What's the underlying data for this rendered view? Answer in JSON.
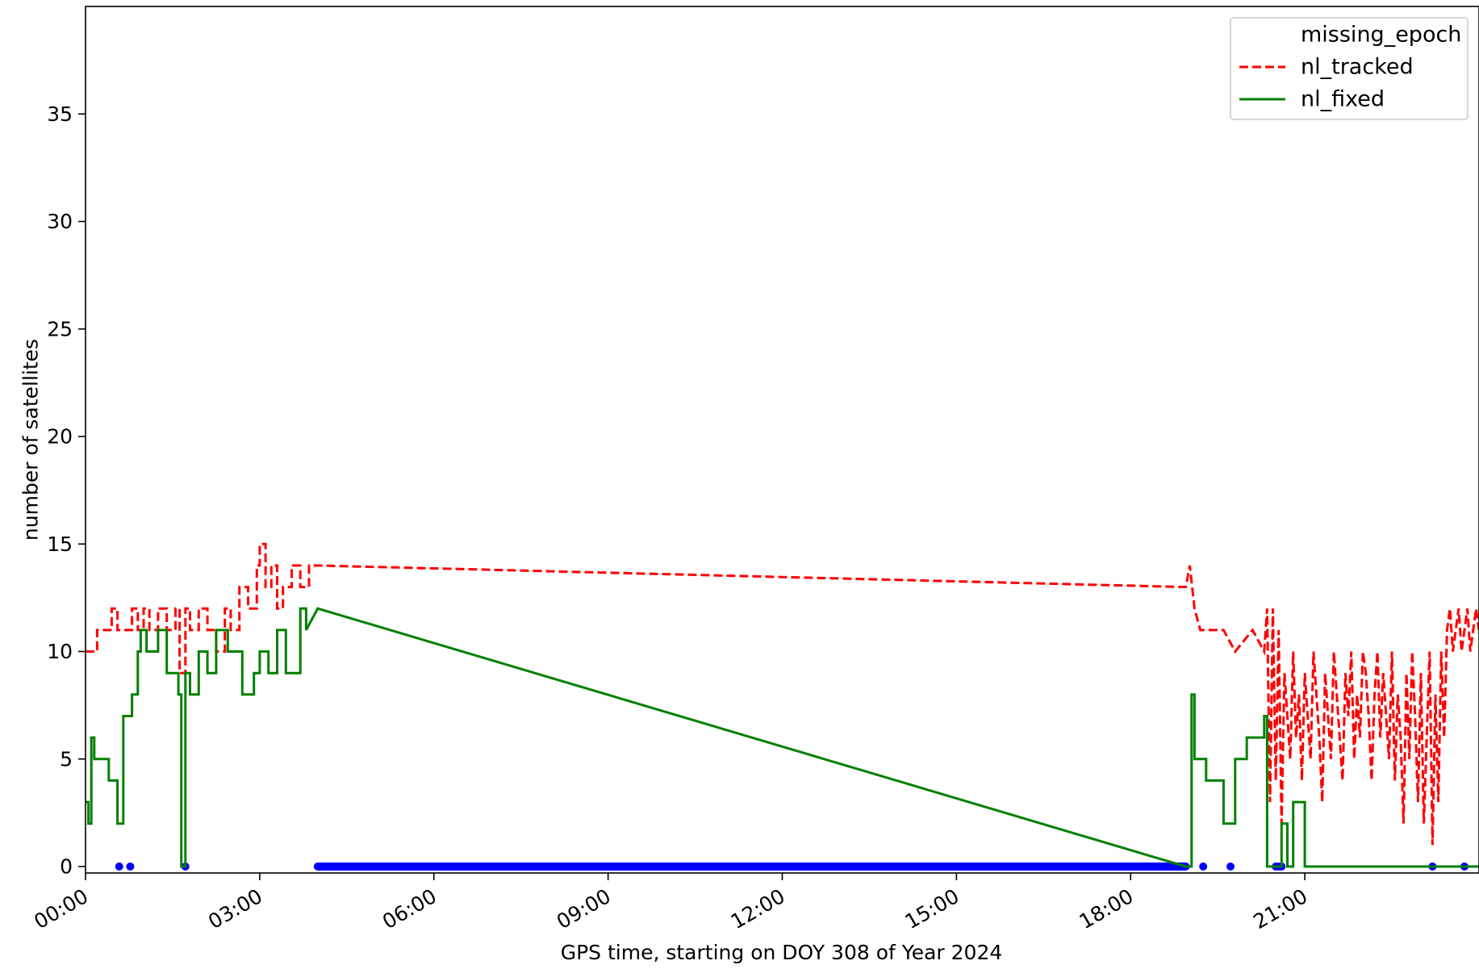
{
  "chart_data": {
    "type": "line",
    "xlabel": "GPS time, starting on DOY 308 of Year 2024",
    "ylabel": "number of satellites",
    "xlim": [
      0,
      24
    ],
    "ylim": [
      -0.3,
      40
    ],
    "grid": false,
    "legend_position": "top-right",
    "x_ticks": [
      {
        "value": 0,
        "label": "00:00"
      },
      {
        "value": 3,
        "label": "03:00"
      },
      {
        "value": 6,
        "label": "06:00"
      },
      {
        "value": 9,
        "label": "09:00"
      },
      {
        "value": 12,
        "label": "12:00"
      },
      {
        "value": 15,
        "label": "15:00"
      },
      {
        "value": 18,
        "label": "18:00"
      },
      {
        "value": 21,
        "label": "21:00"
      }
    ],
    "y_ticks": [
      {
        "value": 0,
        "label": "0"
      },
      {
        "value": 5,
        "label": "5"
      },
      {
        "value": 10,
        "label": "10"
      },
      {
        "value": 15,
        "label": "15"
      },
      {
        "value": 20,
        "label": "20"
      },
      {
        "value": 25,
        "label": "25"
      },
      {
        "value": 30,
        "label": "30"
      },
      {
        "value": 35,
        "label": "35"
      }
    ],
    "series": [
      {
        "name": "missing_epoch",
        "kind": "scatter",
        "color": "#0000ff",
        "points": [
          [
            0.58,
            0
          ],
          [
            0.77,
            0
          ],
          [
            1.72,
            0
          ],
          [
            19.25,
            0
          ],
          [
            19.72,
            0
          ],
          [
            20.5,
            0
          ],
          [
            20.55,
            0
          ],
          [
            20.6,
            0
          ],
          [
            23.2,
            0
          ],
          [
            23.75,
            0
          ]
        ],
        "bands": [
          [
            4.0,
            18.95,
            0
          ]
        ]
      },
      {
        "name": "nl_tracked",
        "kind": "line",
        "style": "dashed",
        "color": "#ff0000",
        "x": [
          0,
          0.2,
          0.2,
          0.45,
          0.45,
          0.55,
          0.55,
          0.8,
          0.8,
          0.9,
          0.9,
          1.0,
          1.0,
          1.1,
          1.1,
          1.25,
          1.25,
          1.4,
          1.4,
          1.55,
          1.55,
          1.62,
          1.62,
          1.72,
          1.72,
          1.8,
          1.8,
          1.95,
          1.95,
          2.1,
          2.1,
          2.25,
          2.25,
          2.4,
          2.4,
          2.5,
          2.5,
          2.65,
          2.65,
          2.8,
          2.8,
          2.95,
          2.95,
          3.0,
          3.0,
          3.1,
          3.1,
          3.2,
          3.2,
          3.3,
          3.3,
          3.4,
          3.4,
          3.55,
          3.55,
          3.7,
          3.7,
          3.85,
          3.85,
          4.0,
          4.0,
          18.95,
          18.95,
          19.02,
          19.02,
          19.1,
          19.1,
          19.2,
          19.2,
          19.6,
          19.6,
          19.8,
          19.8,
          20.1,
          20.1,
          20.3,
          20.3,
          20.35,
          20.4,
          20.45,
          20.5,
          20.55,
          20.6,
          20.65,
          20.7,
          20.75,
          20.8,
          20.85,
          20.9,
          20.95,
          21.0,
          21.05,
          21.1,
          21.15,
          21.2,
          21.25,
          21.3,
          21.35,
          21.4,
          21.45,
          21.5,
          21.55,
          21.6,
          21.65,
          21.7,
          21.75,
          21.8,
          21.85,
          21.9,
          21.95,
          22.0,
          22.05,
          22.1,
          22.15,
          22.2,
          22.25,
          22.3,
          22.35,
          22.4,
          22.45,
          22.5,
          22.55,
          22.6,
          22.65,
          22.7,
          22.75,
          22.8,
          22.85,
          22.9,
          22.95,
          23.0,
          23.05,
          23.1,
          23.15,
          23.2,
          23.25,
          23.3,
          23.35,
          23.4,
          23.45,
          23.5,
          23.55,
          23.6,
          23.65,
          23.7,
          23.75,
          23.8,
          23.85,
          23.9,
          23.95,
          24.0
        ],
        "y": [
          10,
          10,
          11,
          11,
          12,
          12,
          11,
          11,
          12,
          12,
          11,
          11,
          12,
          12,
          11,
          11,
          12,
          12,
          11,
          11,
          12,
          12,
          9,
          9,
          12,
          12,
          11,
          11,
          12,
          12,
          11,
          11,
          10,
          10,
          12,
          12,
          11,
          11,
          13,
          13,
          12,
          12,
          14,
          14,
          15,
          15,
          13,
          13,
          14,
          14,
          12,
          12,
          13,
          13,
          14,
          14,
          13,
          13,
          14,
          14,
          14,
          13,
          13,
          14,
          14,
          12,
          12,
          11,
          11,
          11,
          11,
          10,
          10,
          11,
          11,
          10,
          10,
          12,
          3,
          12,
          4,
          11,
          2,
          9,
          7,
          5,
          10,
          6,
          8,
          4,
          9,
          7,
          5,
          10,
          8,
          6,
          3,
          9,
          7,
          5,
          10,
          8,
          6,
          4,
          9,
          7,
          10,
          5,
          8,
          6,
          10,
          9,
          7,
          4,
          8,
          10,
          6,
          9,
          7,
          5,
          10,
          4,
          8,
          6,
          2,
          9,
          5,
          10,
          7,
          3,
          9,
          2,
          6,
          10,
          1,
          8,
          3,
          10,
          6,
          11,
          12,
          10,
          11,
          12,
          10,
          11,
          12,
          10,
          11,
          12,
          11
        ],
        "legend_label": "nl_tracked"
      },
      {
        "name": "nl_fixed",
        "kind": "line",
        "style": "solid",
        "color": "#008000",
        "x": [
          0,
          0.05,
          0.05,
          0.1,
          0.1,
          0.15,
          0.15,
          0.4,
          0.4,
          0.55,
          0.55,
          0.65,
          0.65,
          0.8,
          0.8,
          0.9,
          0.9,
          0.95,
          0.95,
          1.05,
          1.05,
          1.25,
          1.25,
          1.4,
          1.4,
          1.6,
          1.6,
          1.65,
          1.65,
          1.72,
          1.72,
          1.8,
          1.8,
          1.95,
          1.95,
          2.1,
          2.1,
          2.25,
          2.25,
          2.45,
          2.45,
          2.7,
          2.7,
          2.9,
          2.9,
          3.0,
          3.0,
          3.15,
          3.15,
          3.3,
          3.3,
          3.45,
          3.45,
          3.7,
          3.7,
          3.8,
          3.8,
          4.0,
          18.95,
          19.05,
          19.05,
          19.1,
          19.1,
          19.3,
          19.3,
          19.6,
          19.6,
          19.8,
          19.8,
          20.0,
          20.0,
          20.3,
          20.3,
          20.35,
          20.35,
          20.6,
          20.6,
          20.7,
          20.7,
          20.8,
          20.8,
          21.0,
          21.0,
          24.0
        ],
        "y": [
          3,
          3,
          2,
          2,
          6,
          6,
          5,
          5,
          4,
          4,
          2,
          2,
          7,
          7,
          8,
          8,
          10,
          10,
          11,
          11,
          10,
          10,
          11,
          11,
          9,
          9,
          8,
          8,
          0,
          0,
          9,
          9,
          8,
          8,
          10,
          10,
          9,
          9,
          11,
          11,
          10,
          10,
          8,
          8,
          9,
          9,
          10,
          10,
          9,
          9,
          11,
          11,
          9,
          9,
          12,
          12,
          11,
          12,
          0,
          0,
          8,
          8,
          5,
          5,
          4,
          4,
          2,
          2,
          5,
          5,
          6,
          6,
          7,
          7,
          0,
          0,
          2,
          2,
          0,
          0,
          3,
          3,
          0,
          0
        ],
        "legend_label": "nl_fixed"
      }
    ]
  }
}
